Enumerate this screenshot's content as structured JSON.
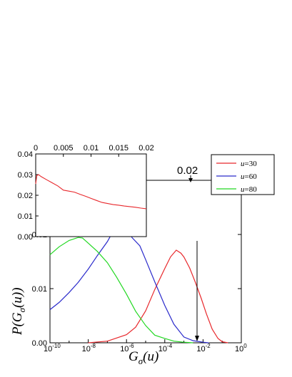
{
  "chart_data": [
    {
      "type": "line",
      "title": "",
      "xlabel": "G_σ(u)",
      "xlabel_parts": {
        "main": "G",
        "sub": "σ",
        "tail": "(u)"
      },
      "ylabel": "P(G_σ(u))",
      "ylabel_parts": {
        "head": "P(G",
        "sub": "σ",
        "tail": "(u))"
      },
      "xscale": "log",
      "xlim": [
        1e-10,
        1
      ],
      "ylim": [
        0,
        0.03
      ],
      "x_ticks": [
        {
          "v": 1e-10,
          "mant": "10",
          "exp": "-10"
        },
        {
          "v": 1e-08,
          "mant": "10",
          "exp": "-8"
        },
        {
          "v": 1e-06,
          "mant": "10",
          "exp": "-6"
        },
        {
          "v": 0.0001,
          "mant": "10",
          "exp": "-4"
        },
        {
          "v": 0.01,
          "mant": "10",
          "exp": "-2"
        },
        {
          "v": 1,
          "mant": "10",
          "exp": "0"
        }
      ],
      "y_ticks": [
        {
          "v": 0,
          "label": "0.00"
        },
        {
          "v": 0.01,
          "label": "0.01"
        },
        {
          "v": 0.02,
          "label": "0.02"
        }
      ],
      "legend_position": "top-right",
      "series": [
        {
          "name": "u=30",
          "name_var": "u",
          "name_val": "=30",
          "color": "#e8282c",
          "x": [
            1e-08,
            1e-07,
            1e-06,
            3e-06,
            1e-05,
            3e-05,
            0.0001,
            0.0002,
            0.0004,
            0.0007,
            0.001,
            0.002,
            0.004,
            0.008,
            0.015,
            0.03,
            0.06,
            0.1,
            0.2
          ],
          "y": [
            0.0,
            0.0003,
            0.0012,
            0.0025,
            0.0055,
            0.0095,
            0.0135,
            0.0158,
            0.0172,
            0.0168,
            0.0162,
            0.0142,
            0.0115,
            0.0085,
            0.0055,
            0.0025,
            0.0008,
            0.0002,
            0.0
          ]
        },
        {
          "name": "u=60",
          "name_var": "u",
          "name_val": "=60",
          "color": "#2a2acb",
          "x": [
            1e-10,
            3e-10,
            1e-09,
            3e-09,
            1e-08,
            3e-08,
            1e-07,
            2e-07,
            4e-07,
            7e-07,
            1e-06,
            2e-06,
            5e-06,
            1e-05,
            3e-05,
            0.0001,
            0.0003,
            0.001,
            0.003,
            0.01,
            0.02
          ],
          "y": [
            0.006,
            0.0075,
            0.0095,
            0.0115,
            0.014,
            0.0165,
            0.019,
            0.0208,
            0.0215,
            0.0212,
            0.0205,
            0.019,
            0.0175,
            0.015,
            0.011,
            0.0068,
            0.0035,
            0.0013,
            0.0004,
            0.0001,
            0.0
          ]
        },
        {
          "name": "u=80",
          "name_var": "u",
          "name_val": "=80",
          "color": "#22d822",
          "x": [
            1e-10,
            3e-10,
            1e-09,
            3e-09,
            5e-09,
            1e-08,
            3e-08,
            1e-07,
            3e-07,
            1e-06,
            3e-06,
            1e-05,
            3e-05,
            0.0001,
            0.0003,
            0.001,
            0.003
          ],
          "y": [
            0.0165,
            0.0178,
            0.0188,
            0.0192,
            0.019,
            0.018,
            0.0165,
            0.0145,
            0.012,
            0.009,
            0.006,
            0.0035,
            0.0018,
            0.0008,
            0.0003,
            0.0001,
            0.0
          ]
        }
      ],
      "annotations": [
        {
          "text": "0.02",
          "x": 0.01,
          "note": "arrows at G = 0.02 (log axis tick 10^-2)"
        }
      ]
    },
    {
      "type": "line",
      "title": "",
      "xlabel": "",
      "ylabel": "",
      "xscale": "linear",
      "xlim": [
        0,
        0.02
      ],
      "ylim": [
        0,
        0.04
      ],
      "x_ticks": [
        {
          "v": 0,
          "label": "0"
        },
        {
          "v": 0.005,
          "label": "0.005"
        },
        {
          "v": 0.01,
          "label": "0.01"
        },
        {
          "v": 0.015,
          "label": "0.015"
        },
        {
          "v": 0.02,
          "label": "0.02"
        }
      ],
      "y_ticks": [
        {
          "v": 0,
          "label": "0.00"
        },
        {
          "v": 0.01,
          "label": "0.01"
        },
        {
          "v": 0.02,
          "label": "0.02"
        },
        {
          "v": 0.03,
          "label": "0.03"
        },
        {
          "v": 0.04,
          "label": "0.04"
        }
      ],
      "series": [
        {
          "color": "#e8282c",
          "x": [
            0,
            0.0002,
            0.0005,
            0.001,
            0.002,
            0.003,
            0.004,
            0.005,
            0.006,
            0.007,
            0.008,
            0.009,
            0.01,
            0.011,
            0.012,
            0.013,
            0.014,
            0.015,
            0.016,
            0.017,
            0.018,
            0.019,
            0.02
          ],
          "y": [
            0.0255,
            0.0295,
            0.03,
            0.029,
            0.0275,
            0.026,
            0.0245,
            0.0225,
            0.022,
            0.0215,
            0.0205,
            0.0195,
            0.0185,
            0.0175,
            0.0165,
            0.016,
            0.0155,
            0.0152,
            0.0148,
            0.0145,
            0.0142,
            0.0138,
            0.0135
          ]
        }
      ]
    }
  ]
}
